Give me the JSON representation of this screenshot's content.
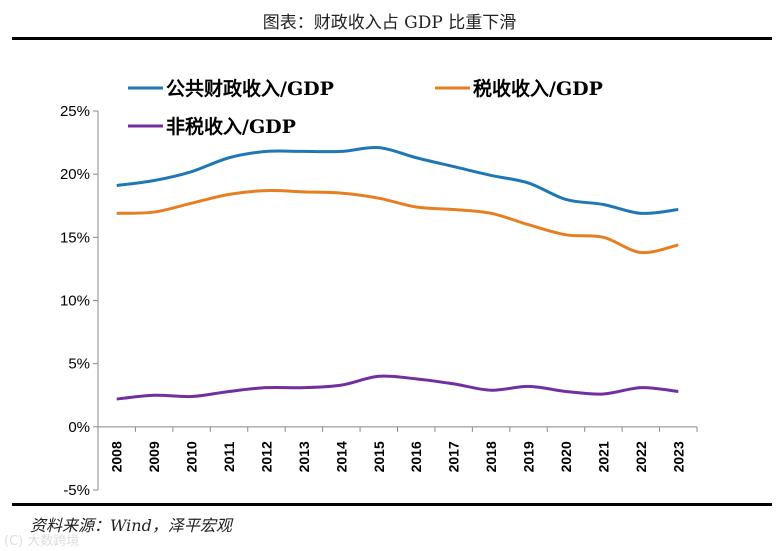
{
  "title": "图表：财政收入占 GDP 比重下滑",
  "source": "资料来源：Wind，泽平宏观",
  "watermark": "大数跨境",
  "chart_data": {
    "type": "line",
    "title": "图表：财政收入占 GDP 比重下滑",
    "xlabel": "",
    "ylabel": "",
    "categories": [
      "2008",
      "2009",
      "2010",
      "2011",
      "2012",
      "2013",
      "2014",
      "2015",
      "2016",
      "2017",
      "2018",
      "2019",
      "2020",
      "2021",
      "2022",
      "2023"
    ],
    "ylim": [
      -5,
      25
    ],
    "yticks": [
      "-5%",
      "0%",
      "5%",
      "10%",
      "15%",
      "20%",
      "25%"
    ],
    "grid": false,
    "legend": "top",
    "series": [
      {
        "name": "公共财政收入/GDP",
        "color": "#1f77b4",
        "values": [
          19.1,
          19.5,
          20.2,
          21.3,
          21.8,
          21.8,
          21.8,
          22.1,
          21.3,
          20.6,
          19.9,
          19.3,
          18.0,
          17.6,
          16.9,
          17.2
        ]
      },
      {
        "name": "税收收入/GDP",
        "color": "#e67e22",
        "values": [
          16.9,
          17.0,
          17.7,
          18.4,
          18.7,
          18.6,
          18.5,
          18.1,
          17.4,
          17.2,
          16.9,
          16.0,
          15.2,
          15.0,
          13.8,
          14.4
        ]
      },
      {
        "name": "非税收入/GDP",
        "color": "#7030a0",
        "values": [
          2.2,
          2.5,
          2.4,
          2.8,
          3.1,
          3.1,
          3.3,
          4.0,
          3.8,
          3.4,
          2.9,
          3.2,
          2.8,
          2.6,
          3.1,
          2.8
        ]
      }
    ]
  }
}
